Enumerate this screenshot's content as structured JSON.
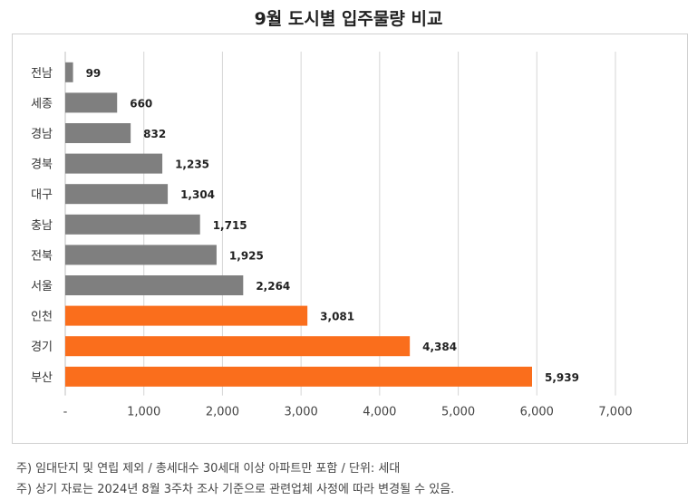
{
  "title": "9월 도시별 입주물량 비교",
  "colors": {
    "gray": "#7f7f7f",
    "orange": "#fa6e1c",
    "grid": "#d6d6d6"
  },
  "chart_data": {
    "type": "bar",
    "orientation": "horizontal",
    "categories": [
      "전남",
      "세종",
      "경남",
      "경북",
      "대구",
      "충남",
      "전북",
      "서울",
      "인천",
      "경기",
      "부산"
    ],
    "values": [
      99,
      660,
      832,
      1235,
      1304,
      1715,
      1925,
      2264,
      3081,
      4384,
      5939
    ],
    "value_labels": [
      "99",
      "660",
      "832",
      "1,235",
      "1,304",
      "1,715",
      "1,925",
      "2,264",
      "3,081",
      "4,384",
      "5,939"
    ],
    "highlight": [
      "gray",
      "gray",
      "gray",
      "gray",
      "gray",
      "gray",
      "gray",
      "gray",
      "orange",
      "orange",
      "orange"
    ],
    "xlim": [
      0,
      7000
    ],
    "xticks": [
      0,
      1000,
      2000,
      3000,
      4000,
      5000,
      6000,
      7000
    ],
    "xtick_labels": [
      "-",
      "1,000",
      "2,000",
      "3,000",
      "4,000",
      "5,000",
      "6,000",
      "7,000"
    ],
    "grid": true
  },
  "notes": [
    "주) 임대단지 및 연립 제외 / 총세대수 30세대 이상 아파트만 포함 / 단위: 세대",
    "주) 상기 자료는 2024년 8월 3주차 조사 기준으로 관련업체 사정에 따라 변경될 수 있음."
  ]
}
